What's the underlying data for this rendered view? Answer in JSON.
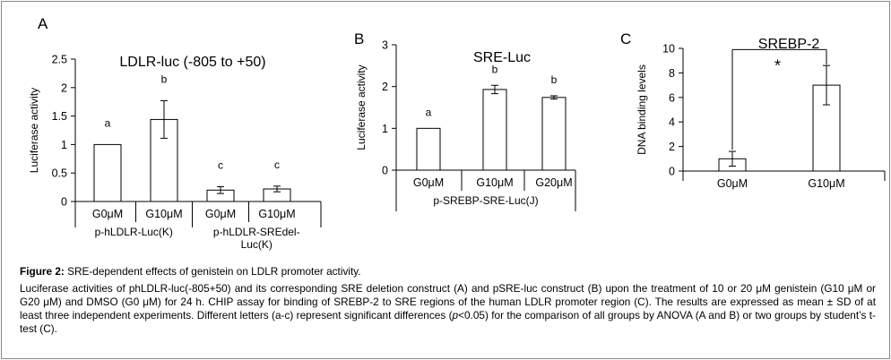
{
  "chart_data": [
    {
      "type": "bar",
      "panel_letter": "A",
      "title": "LDLR-luc (-805 to +50)",
      "ylabel": "Luciferase activity",
      "ylim": [
        0,
        2.5
      ],
      "yticks": [
        "0",
        "0.5",
        "1",
        "1.5",
        "2",
        "2.5"
      ],
      "categories": [
        "G0μM",
        "G10μM",
        "G0μM",
        "G10μM"
      ],
      "values": [
        1.0,
        1.44,
        0.2,
        0.22
      ],
      "errors": [
        0,
        0.33,
        0.06,
        0.05
      ],
      "letters": [
        "a",
        "b",
        "c",
        "c"
      ],
      "groups": [
        {
          "label_lines": [
            "p-hLDLR-Luc(K)"
          ],
          "span": [
            0,
            1
          ]
        },
        {
          "label_lines": [
            "p-hLDLR-SREdel-",
            "Luc(K)"
          ],
          "span": [
            2,
            3
          ]
        }
      ]
    },
    {
      "type": "bar",
      "panel_letter": "B",
      "title": "SRE-Luc",
      "ylabel": "Luciferase activity",
      "ylim": [
        0,
        3
      ],
      "yticks": [
        "0",
        "1",
        "2",
        "3"
      ],
      "categories": [
        "G0μM",
        "G10μM",
        "G20μM"
      ],
      "values": [
        1.0,
        1.93,
        1.74
      ],
      "errors": [
        0,
        0.1,
        0.04
      ],
      "letters": [
        "a",
        "b",
        "b"
      ],
      "groups": [
        {
          "label_lines": [
            "p-SREBP-SRE-Luc(J)"
          ],
          "span": [
            0,
            2
          ]
        }
      ]
    },
    {
      "type": "bar",
      "panel_letter": "C",
      "title": "SREBP-2",
      "ylabel": "DNA binding levels",
      "ylim": [
        0,
        10
      ],
      "yticks": [
        "0",
        "2",
        "4",
        "6",
        "8",
        "10"
      ],
      "categories": [
        "G0μM",
        "G10μM"
      ],
      "values": [
        1.0,
        7.0
      ],
      "errors": [
        0.6,
        1.6
      ],
      "significance": "*"
    }
  ],
  "caption": {
    "title_label": "Figure 2:",
    "title_text": " SRE-dependent effects of genistein on LDLR promoter activity.",
    "body_before_italic": "Luciferase activities of phLDLR-luc(-805+50) and its corresponding SRE deletion construct (A) and pSRE-luc construct (B) upon the treatment of 10 or 20 μM genistein (G10 μM or G20 μM) and DMSO (G0 μM) for 24 h. CHIP assay for binding of SREBP-2 to SRE regions of the human LDLR promoter region (C). The results are expressed as mean ± SD of at least three independent experiments. Different letters (a-c) represent significant differences (",
    "body_italic": "p",
    "body_after_italic": "<0.05) for the comparison of all groups by ANOVA (A and B) or two groups by student’s t-test (C)."
  }
}
